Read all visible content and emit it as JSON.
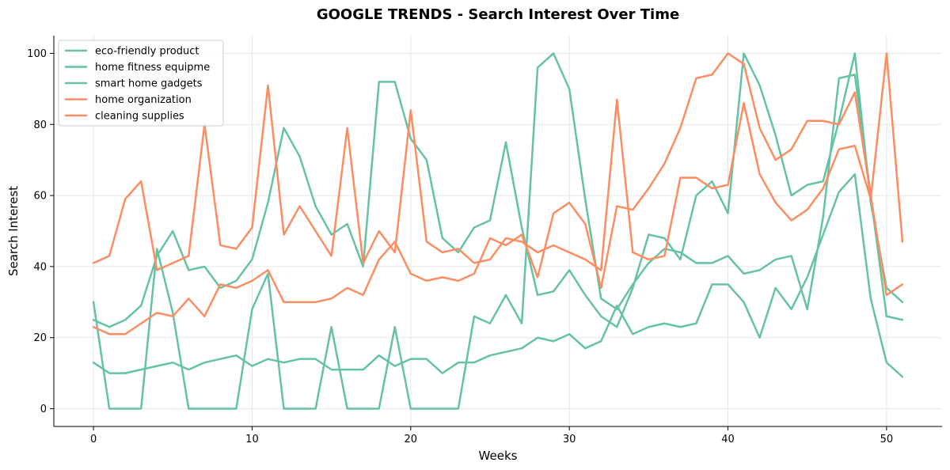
{
  "chart_data": {
    "type": "line",
    "title": "GOOGLE TRENDS - Search Interest Over Time",
    "xlabel": "Weeks",
    "ylabel": "Search Interest",
    "xlim": [
      -2.5,
      53.5
    ],
    "ylim": [
      -5,
      105
    ],
    "xticks": [
      0,
      10,
      20,
      30,
      40,
      50
    ],
    "yticks": [
      0,
      20,
      40,
      60,
      80,
      100
    ],
    "grid": true,
    "legend_position": "top-left",
    "x": [
      0,
      1,
      2,
      3,
      4,
      5,
      6,
      7,
      8,
      9,
      10,
      11,
      12,
      13,
      14,
      15,
      16,
      17,
      18,
      19,
      20,
      21,
      22,
      23,
      24,
      25,
      26,
      27,
      28,
      29,
      30,
      31,
      32,
      33,
      34,
      35,
      36,
      37,
      38,
      39,
      40,
      41,
      42,
      43,
      44,
      45,
      46,
      47,
      48,
      49,
      50,
      51
    ],
    "series": [
      {
        "name": "eco-friendly product",
        "color": "#66c2a5",
        "values": [
          13,
          10,
          10,
          11,
          12,
          13,
          11,
          13,
          14,
          15,
          12,
          14,
          13,
          14,
          14,
          11,
          11,
          11,
          15,
          12,
          14,
          14,
          10,
          13,
          13,
          15,
          16,
          17,
          20,
          19,
          21,
          17,
          19,
          29,
          21,
          23,
          24,
          23,
          24,
          35,
          35,
          30,
          20,
          34,
          28,
          37,
          49,
          61,
          66,
          31,
          13,
          9
        ]
      },
      {
        "name": "home fitness equipme",
        "color": "#66c2a5",
        "values": [
          30,
          0,
          0,
          0,
          45,
          27,
          0,
          0,
          0,
          0,
          28,
          38,
          0,
          0,
          0,
          23,
          0,
          0,
          0,
          23,
          0,
          0,
          0,
          0,
          26,
          24,
          32,
          24,
          96,
          100,
          90,
          59,
          31,
          28,
          35,
          41,
          45,
          44,
          41,
          41,
          43,
          38,
          39,
          42,
          43,
          28,
          54,
          93,
          94,
          60,
          26,
          25
        ]
      },
      {
        "name": "smart home gadgets",
        "color": "#66c2a5",
        "values": [
          25,
          23,
          25,
          29,
          43,
          50,
          39,
          40,
          34,
          36,
          42,
          58,
          79,
          71,
          57,
          49,
          52,
          40,
          92,
          92,
          76,
          70,
          48,
          44,
          51,
          53,
          75,
          51,
          32,
          33,
          39,
          32,
          26,
          23,
          34,
          49,
          48,
          42,
          60,
          64,
          55,
          100,
          91,
          77,
          60,
          63,
          64,
          81,
          100,
          58,
          34,
          30
        ]
      },
      {
        "name": "home organization",
        "color": "#fc8d62",
        "values": [
          23,
          21,
          21,
          24,
          27,
          26,
          31,
          26,
          35,
          34,
          36,
          39,
          30,
          30,
          30,
          31,
          34,
          32,
          42,
          47,
          38,
          36,
          37,
          36,
          38,
          48,
          46,
          49,
          37,
          55,
          58,
          52,
          34,
          57,
          56,
          62,
          69,
          79,
          93,
          94,
          100,
          97,
          79,
          70,
          73,
          81,
          81,
          80,
          89,
          60,
          32,
          35
        ]
      },
      {
        "name": "cleaning supplies",
        "color": "#fc8d62",
        "values": [
          41,
          43,
          59,
          64,
          39,
          41,
          43,
          80,
          46,
          45,
          51,
          91,
          49,
          57,
          50,
          43,
          79,
          41,
          50,
          44,
          84,
          47,
          44,
          45,
          41,
          42,
          48,
          47,
          44,
          46,
          44,
          42,
          39,
          87,
          44,
          42,
          43,
          65,
          65,
          62,
          63,
          86,
          66,
          58,
          53,
          56,
          62,
          73,
          74,
          59,
          100,
          47
        ]
      }
    ]
  }
}
